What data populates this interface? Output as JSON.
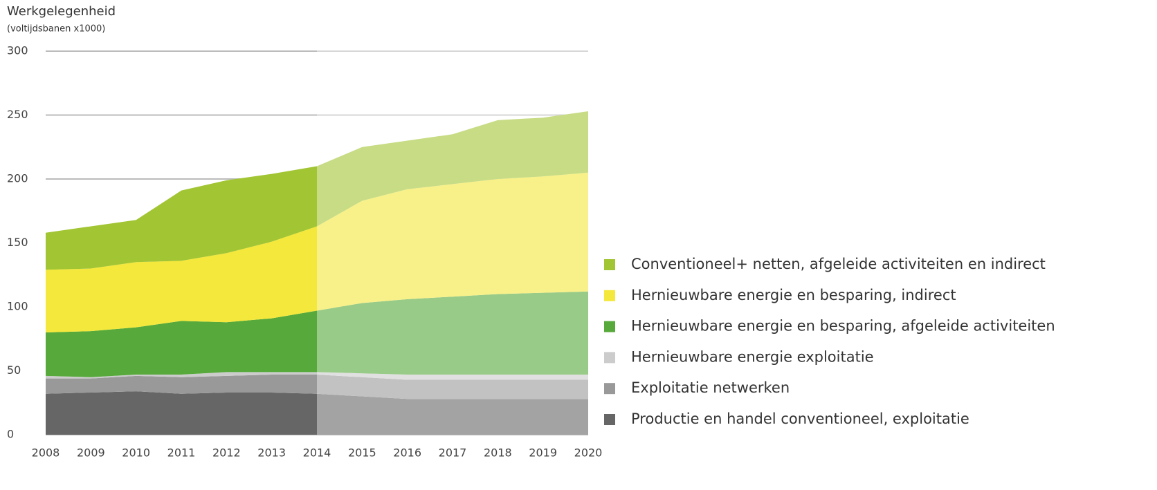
{
  "chart_data": {
    "type": "stacked_area",
    "title": "Werkgelegenheid",
    "subtitle": "(voltijdsbanen x1000)",
    "categories": [
      "2008",
      "2009",
      "2010",
      "2011",
      "2012",
      "2013",
      "2014",
      "2015",
      "2016",
      "2017",
      "2018",
      "2019",
      "2020"
    ],
    "series": [
      {
        "name": "Productie en handel conventioneel, exploitatie",
        "color": "#666666",
        "values": [
          32,
          33,
          34,
          32,
          33,
          33,
          32,
          30,
          28,
          28,
          28,
          28,
          28
        ]
      },
      {
        "name": "Exploitatie netwerken",
        "color": "#999999",
        "values": [
          12,
          11,
          12,
          13,
          13,
          14,
          15,
          15,
          15,
          15,
          15,
          15,
          15
        ]
      },
      {
        "name": "Hernieuwbare energie exploitatie",
        "color": "#cccccc",
        "values": [
          2,
          1,
          1,
          2,
          3,
          2,
          2,
          3,
          4,
          4,
          4,
          4,
          4
        ]
      },
      {
        "name": "Hernieuwbare energie en besparing, afgeleide activiteiten",
        "color": "#56a93a",
        "values": [
          34,
          36,
          37,
          42,
          39,
          42,
          48,
          55,
          59,
          61,
          63,
          64,
          65
        ]
      },
      {
        "name": "Hernieuwbare energie en besparing, indirect",
        "color": "#f3e83b",
        "values": [
          49,
          49,
          51,
          47,
          54,
          60,
          66,
          80,
          86,
          88,
          90,
          91,
          93
        ]
      },
      {
        "name": "Conventioneel+ netten, afgeleide activiteiten en indirect",
        "color": "#a2c534",
        "values": [
          29,
          33,
          33,
          55,
          57,
          53,
          47,
          42,
          38,
          39,
          46,
          46,
          48
        ]
      }
    ],
    "ylim": [
      0,
      300
    ],
    "yticks": [
      0,
      50,
      100,
      150,
      200,
      250,
      300
    ],
    "grid": true
  }
}
